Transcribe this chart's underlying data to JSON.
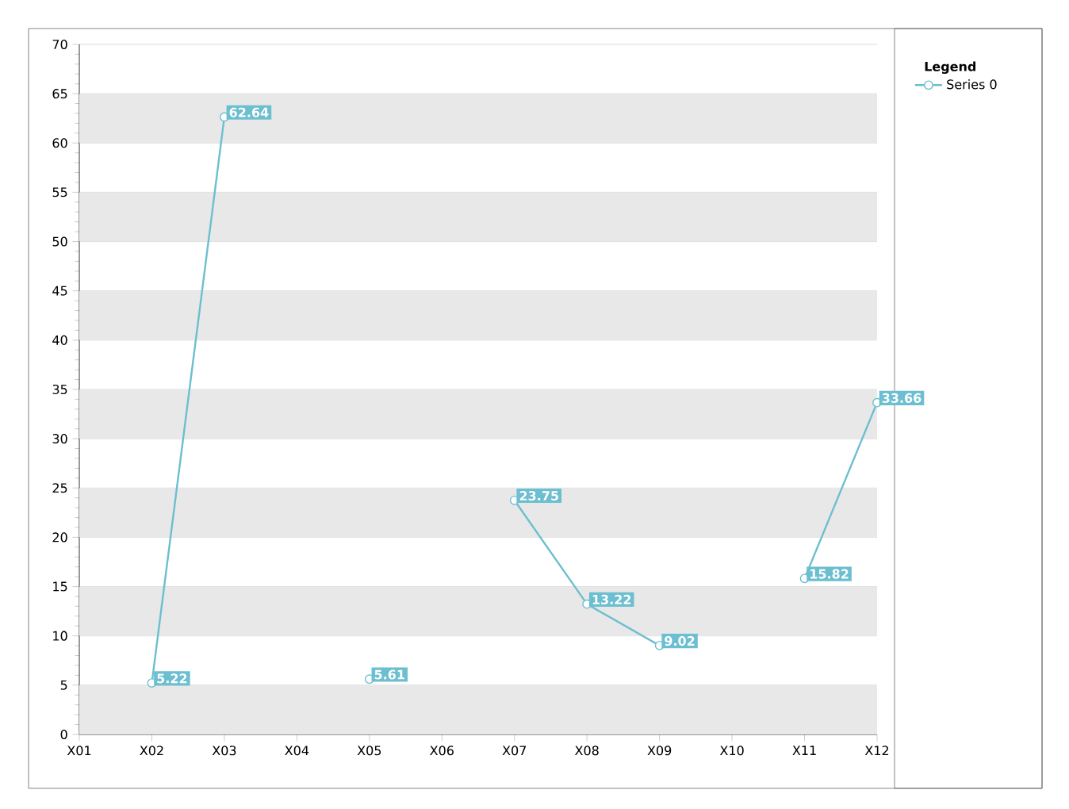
{
  "chart_data": {
    "type": "line",
    "categories": [
      "X01",
      "X02",
      "X03",
      "X04",
      "X05",
      "X06",
      "X07",
      "X08",
      "X09",
      "X10",
      "X11",
      "X12"
    ],
    "series": [
      {
        "name": "Series 0",
        "color": "#6cbfd0",
        "values": [
          null,
          5.22,
          62.64,
          null,
          5.61,
          null,
          23.75,
          13.22,
          9.02,
          null,
          15.82,
          33.66
        ]
      }
    ],
    "ylim": [
      0,
      70
    ],
    "yticks": [
      0,
      5,
      10,
      15,
      20,
      25,
      30,
      35,
      40,
      45,
      50,
      55,
      60,
      65,
      70
    ],
    "grid": "y",
    "legend": "right",
    "legend_title": "Legend",
    "marker": "circle",
    "line_style": "solid",
    "data_labels": true
  }
}
